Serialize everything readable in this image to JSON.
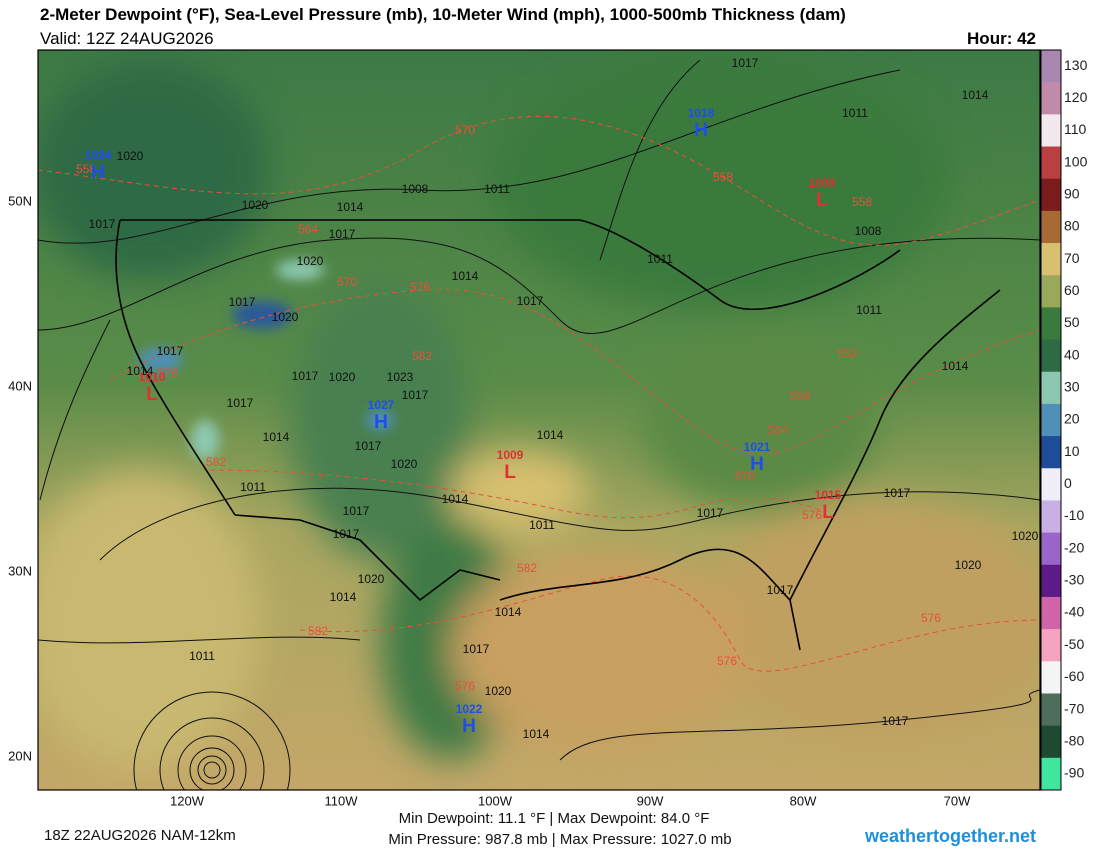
{
  "header": {
    "title": "2-Meter Dewpoint (°F), Sea-Level Pressure (mb), 10-Meter Wind (mph), 1000-500mb Thickness (dam)",
    "valid": "Valid: 12Z 24AUG2026",
    "hour": "Hour: 42"
  },
  "colorbar": {
    "ticks": [
      130,
      120,
      110,
      100,
      90,
      80,
      70,
      60,
      50,
      40,
      30,
      20,
      10,
      0,
      -10,
      -20,
      -30,
      -40,
      -50,
      -60,
      -70,
      -80,
      -90
    ],
    "colors": [
      "#a888b0",
      "#c08aa8",
      "#f2e8ee",
      "#b84040",
      "#7a1c1c",
      "#a86a34",
      "#d8c070",
      "#9aa85a",
      "#3a7a3e",
      "#2e6a44",
      "#8cc8b0",
      "#4f8fb8",
      "#1f4d9a",
      "#f0eef8",
      "#c8b0e6",
      "#9a64c8",
      "#5e1a86",
      "#d064a8",
      "#f4a4c0",
      "#f4f4f4",
      "#4e6e5c",
      "#1e4a30",
      "#40e6a0"
    ]
  },
  "map": {
    "lat_labels": [
      "50N",
      "40N",
      "30N",
      "20N"
    ],
    "lon_labels": [
      "120W",
      "110W",
      "100W",
      "90W",
      "80W",
      "70W"
    ],
    "isobar_labels": [
      1017,
      1014,
      1011,
      1020,
      1008,
      1014,
      1011,
      1020,
      1017,
      1014,
      1017,
      1020,
      1017,
      1020,
      1017,
      1014,
      1017,
      1020,
      1023,
      1017,
      1017,
      1014,
      1014,
      1017,
      1020,
      1011,
      1014,
      1011,
      1017,
      1017,
      1017,
      1017,
      1020,
      1020,
      1020,
      1014,
      1014,
      1017,
      1017,
      1020,
      1014,
      1011,
      1017,
      1014,
      1011,
      1017,
      1008,
      1011
    ],
    "thickness_labels": [
      570,
      558,
      558,
      564,
      570,
      576,
      582,
      576,
      552,
      558,
      564,
      570,
      576,
      582,
      582,
      582,
      576,
      576,
      576,
      558
    ],
    "centers": [
      {
        "type": "H",
        "value": 1024
      },
      {
        "type": "H",
        "value": 1018
      },
      {
        "type": "L",
        "value": 1008
      },
      {
        "type": "L",
        "value": 1010
      },
      {
        "type": "H",
        "value": 1027
      },
      {
        "type": "L",
        "value": 1009
      },
      {
        "type": "H",
        "value": 1021
      },
      {
        "type": "L",
        "value": 1015
      },
      {
        "type": "H",
        "value": 1022
      }
    ]
  },
  "footer": {
    "model": "18Z 22AUG2026 NAM-12km",
    "dewpoint": "Min Dewpoint:  11.1 °F | Max Dewpoint:  84.0 °F",
    "pressure": "Min Pressure: 987.8 mb | Max Pressure: 1027.0 mb",
    "site": "weathertogether.net"
  }
}
